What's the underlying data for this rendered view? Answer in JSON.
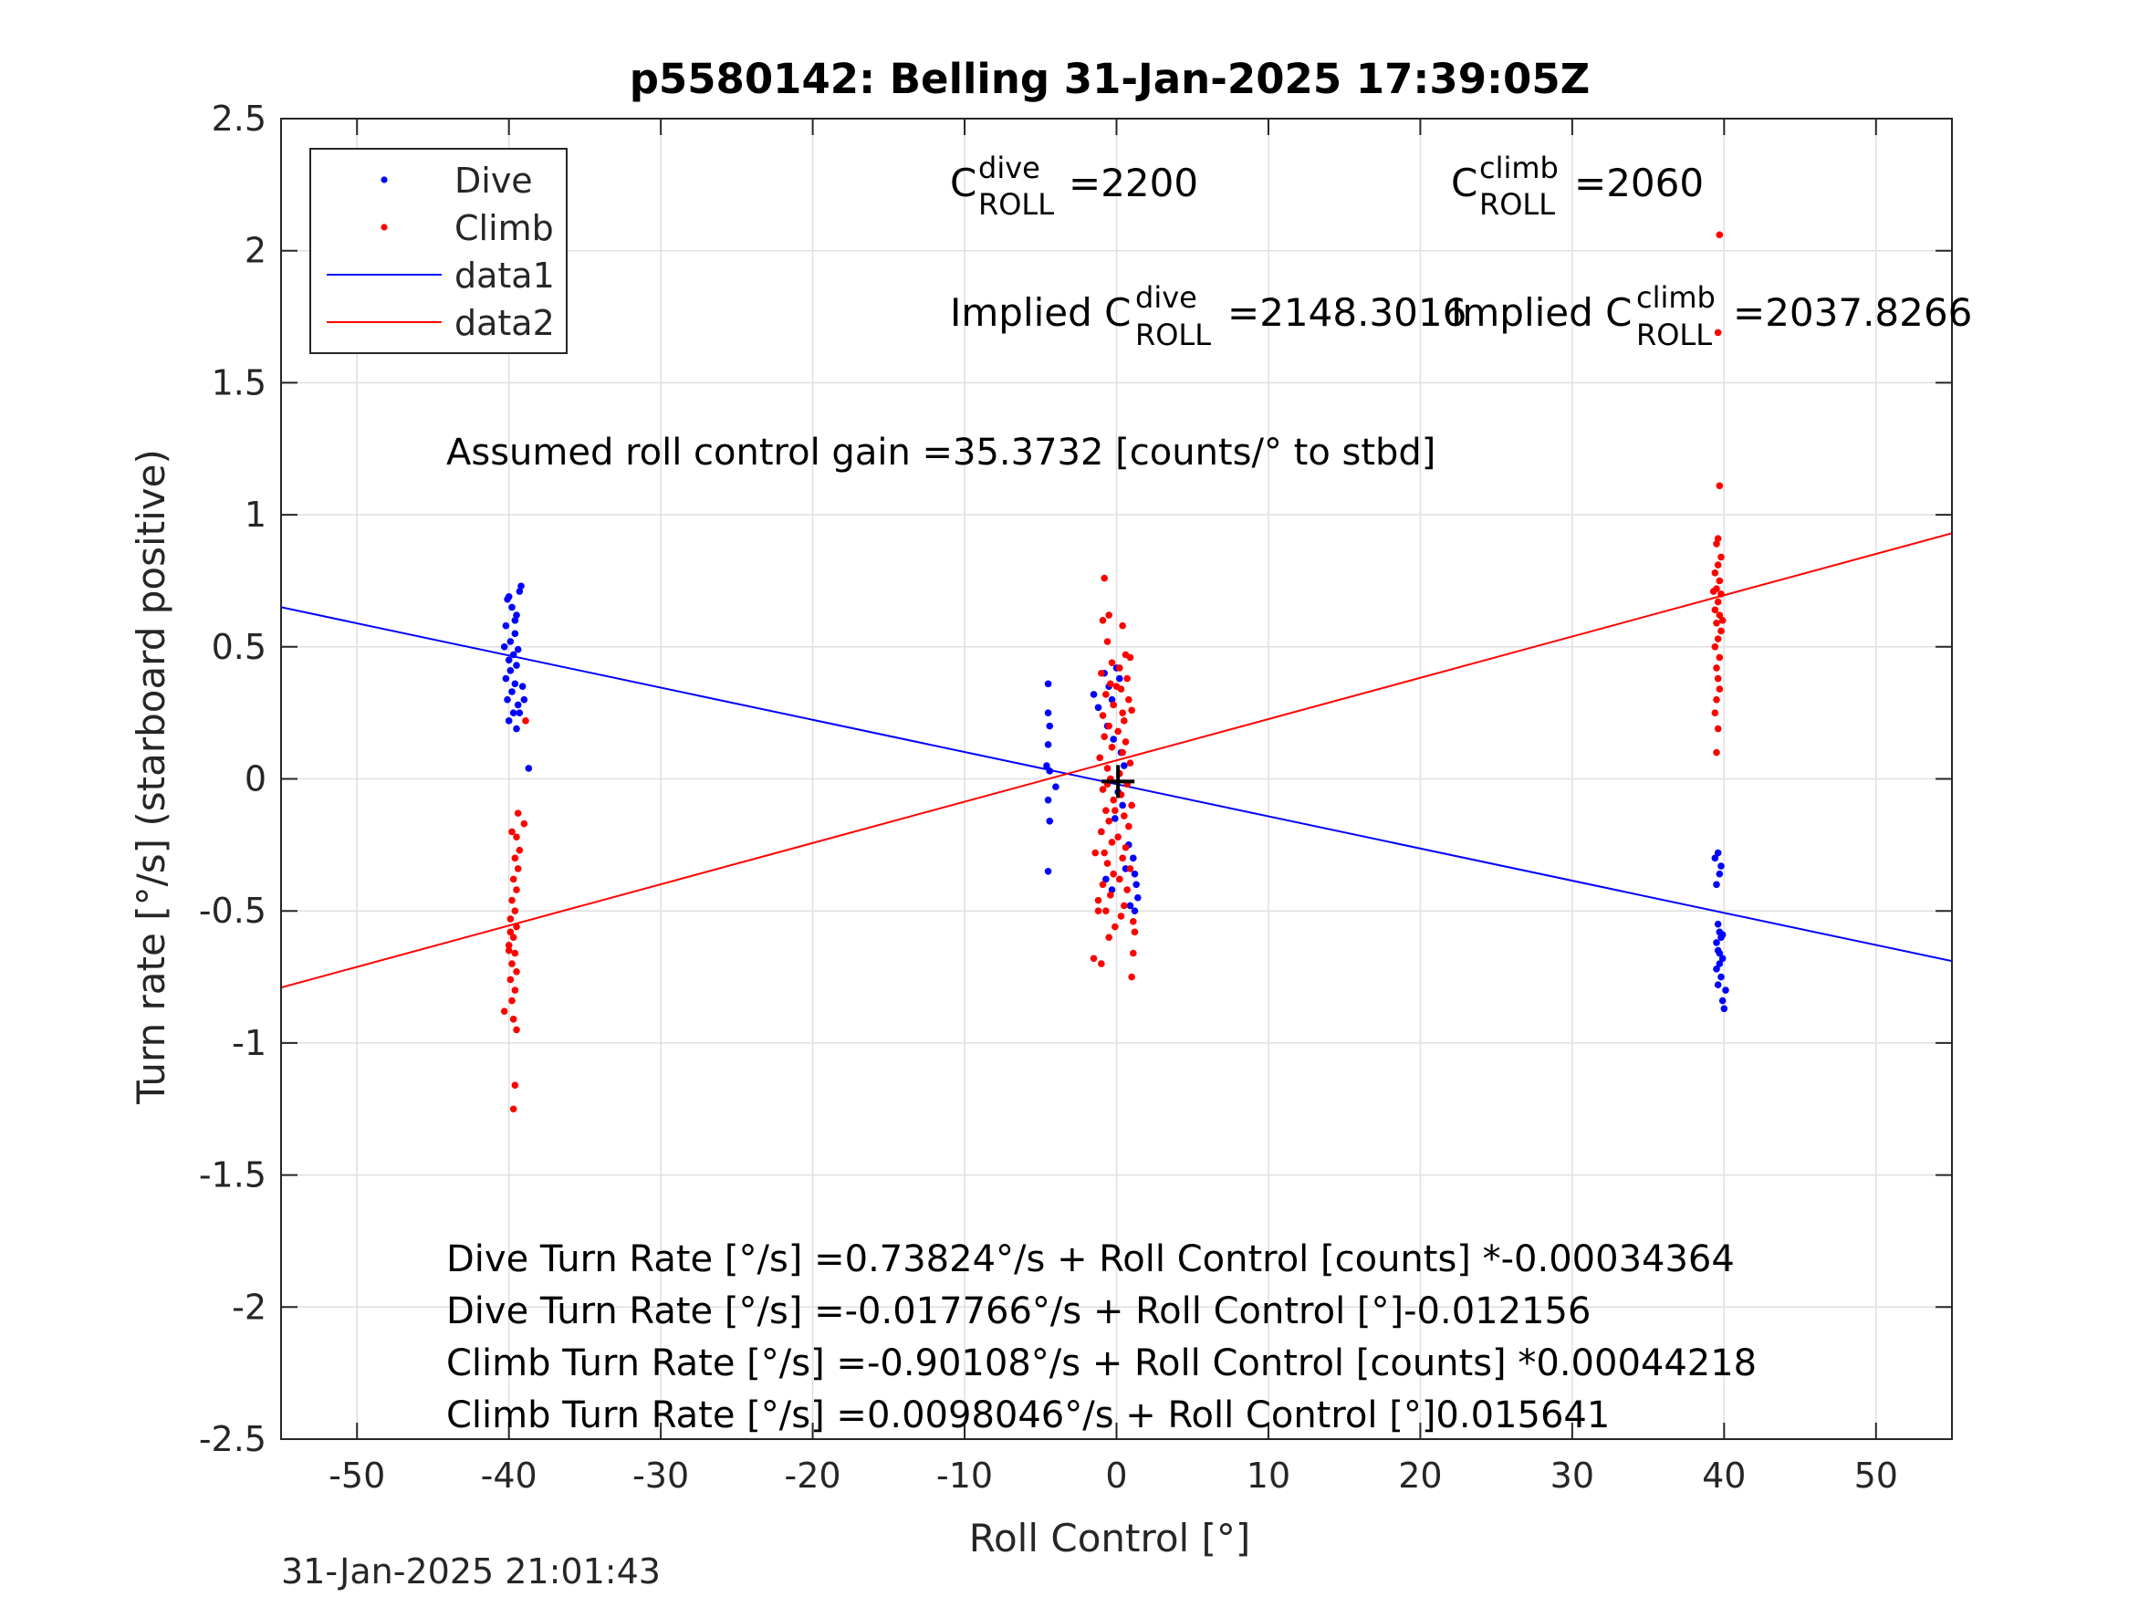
{
  "chart_data": {
    "type": "scatter",
    "title": "p5580142: Belling 31-Jan-2025 17:39:05Z",
    "xlabel": "Roll Control [°]",
    "ylabel": "Turn rate [°/s] (starboard positive)",
    "xlim": [
      -55,
      55
    ],
    "ylim": [
      -2.5,
      2.5
    ],
    "xticks": [
      -50,
      -40,
      -30,
      -20,
      -10,
      0,
      10,
      20,
      30,
      40,
      50
    ],
    "yticks": [
      -2.5,
      -2,
      -1.5,
      -1,
      -0.5,
      0,
      0.5,
      1,
      1.5,
      2,
      2.5
    ],
    "xtick_labels": [
      "-50",
      "-40",
      "-30",
      "-20",
      "-10",
      "0",
      "10",
      "20",
      "30",
      "40",
      "50"
    ],
    "ytick_labels": [
      "-2.5",
      "-2",
      "-1.5",
      "-1",
      "-0.5",
      "0",
      "0.5",
      "1",
      "1.5",
      "2",
      "2.5"
    ],
    "grid": true,
    "legend_position": "top-left",
    "legend": [
      "Dive",
      "Climb",
      "data1",
      "data2"
    ],
    "colors": {
      "dive": "#0000ff",
      "climb": "#ff0000",
      "marker": "#000000"
    },
    "series": [
      {
        "name": "Dive",
        "kind": "points",
        "points": [
          [
            -40.1,
            0.68
          ],
          [
            -39.8,
            0.65
          ],
          [
            -39.5,
            0.62
          ],
          [
            -40.2,
            0.58
          ],
          [
            -39.6,
            0.55
          ],
          [
            -39.9,
            0.52
          ],
          [
            -40.3,
            0.5
          ],
          [
            -39.4,
            0.49
          ],
          [
            -39.7,
            0.47
          ],
          [
            -40.0,
            0.45
          ],
          [
            -39.5,
            0.43
          ],
          [
            -39.9,
            0.41
          ],
          [
            -40.2,
            0.38
          ],
          [
            -39.6,
            0.36
          ],
          [
            -39.8,
            0.33
          ],
          [
            -40.1,
            0.3
          ],
          [
            -39.4,
            0.28
          ],
          [
            -39.7,
            0.25
          ],
          [
            -40.0,
            0.22
          ],
          [
            -39.5,
            0.19
          ],
          [
            -39.2,
            0.73
          ],
          [
            -39.3,
            0.71
          ],
          [
            -40.0,
            0.69
          ],
          [
            -39.6,
            0.6
          ],
          [
            -39.1,
            0.35
          ],
          [
            -39.0,
            0.3
          ],
          [
            -39.3,
            0.25
          ],
          [
            -38.7,
            0.04
          ],
          [
            -4.5,
            0.36
          ],
          [
            -4.5,
            0.25
          ],
          [
            -4.4,
            0.2
          ],
          [
            -4.5,
            0.13
          ],
          [
            -4.6,
            0.05
          ],
          [
            -4.4,
            0.03
          ],
          [
            -4.5,
            -0.08
          ],
          [
            -4.4,
            -0.16
          ],
          [
            -4.5,
            -0.35
          ],
          [
            -4.0,
            -0.03
          ],
          [
            -1.5,
            0.32
          ],
          [
            -1.2,
            0.27
          ],
          [
            -0.8,
            0.4
          ],
          [
            -0.5,
            0.35
          ],
          [
            -0.3,
            0.3
          ],
          [
            0.0,
            0.42
          ],
          [
            0.2,
            0.38
          ],
          [
            -0.6,
            0.2
          ],
          [
            -0.2,
            0.15
          ],
          [
            0.3,
            0.1
          ],
          [
            0.5,
            0.05
          ],
          [
            -0.4,
            0.0
          ],
          [
            0.1,
            -0.05
          ],
          [
            0.4,
            -0.1
          ],
          [
            -0.1,
            -0.15
          ],
          [
            -1.0,
            -0.2
          ],
          [
            0.8,
            -0.25
          ],
          [
            1.1,
            -0.3
          ],
          [
            1.2,
            -0.36
          ],
          [
            1.3,
            -0.4
          ],
          [
            1.4,
            -0.45
          ],
          [
            1.2,
            -0.5
          ],
          [
            -0.7,
            -0.38
          ],
          [
            0.6,
            -0.34
          ],
          [
            0.9,
            -0.48
          ],
          [
            -0.3,
            -0.42
          ],
          [
            39.6,
            -0.28
          ],
          [
            39.4,
            -0.3
          ],
          [
            39.8,
            -0.33
          ],
          [
            39.7,
            -0.36
          ],
          [
            39.5,
            -0.4
          ],
          [
            39.6,
            -0.55
          ],
          [
            39.7,
            -0.58
          ],
          [
            39.8,
            -0.6
          ],
          [
            39.5,
            -0.62
          ],
          [
            39.6,
            -0.65
          ],
          [
            39.9,
            -0.68
          ],
          [
            39.7,
            -0.7
          ],
          [
            39.5,
            -0.72
          ],
          [
            39.8,
            -0.75
          ],
          [
            39.6,
            -0.78
          ],
          [
            40.1,
            -0.8
          ],
          [
            39.9,
            -0.84
          ],
          [
            40.0,
            -0.87
          ],
          [
            39.7,
            -0.66
          ],
          [
            39.9,
            -0.59
          ]
        ]
      },
      {
        "name": "Climb",
        "kind": "points",
        "points": [
          [
            -39.4,
            -0.13
          ],
          [
            -39.0,
            -0.17
          ],
          [
            -39.8,
            -0.2
          ],
          [
            -39.5,
            -0.22
          ],
          [
            -39.3,
            -0.27
          ],
          [
            -39.6,
            -0.3
          ],
          [
            -39.4,
            -0.34
          ],
          [
            -39.7,
            -0.38
          ],
          [
            -39.5,
            -0.42
          ],
          [
            -39.8,
            -0.46
          ],
          [
            -39.6,
            -0.5
          ],
          [
            -39.9,
            -0.53
          ],
          [
            -39.5,
            -0.56
          ],
          [
            -39.7,
            -0.6
          ],
          [
            -40.0,
            -0.63
          ],
          [
            -39.6,
            -0.66
          ],
          [
            -39.8,
            -0.7
          ],
          [
            -39.5,
            -0.73
          ],
          [
            -39.9,
            -0.76
          ],
          [
            -39.6,
            -0.8
          ],
          [
            -39.8,
            -0.84
          ],
          [
            -40.3,
            -0.88
          ],
          [
            -39.7,
            -0.91
          ],
          [
            -39.5,
            -0.95
          ],
          [
            -39.6,
            -1.16
          ],
          [
            -39.7,
            -1.25
          ],
          [
            -38.9,
            0.22
          ],
          [
            -40.0,
            -0.65
          ],
          [
            -39.9,
            -0.58
          ],
          [
            -0.8,
            0.76
          ],
          [
            -0.5,
            0.62
          ],
          [
            -0.9,
            0.6
          ],
          [
            0.4,
            0.58
          ],
          [
            -0.6,
            0.52
          ],
          [
            0.6,
            0.47
          ],
          [
            0.9,
            0.46
          ],
          [
            -0.3,
            0.44
          ],
          [
            0.2,
            0.42
          ],
          [
            -1.0,
            0.4
          ],
          [
            0.7,
            0.38
          ],
          [
            -0.4,
            0.36
          ],
          [
            0.3,
            0.34
          ],
          [
            -0.7,
            0.32
          ],
          [
            0.8,
            0.3
          ],
          [
            -0.2,
            0.28
          ],
          [
            1.0,
            0.26
          ],
          [
            -0.9,
            0.24
          ],
          [
            0.5,
            0.22
          ],
          [
            -0.5,
            0.2
          ],
          [
            0.1,
            0.18
          ],
          [
            -0.8,
            0.16
          ],
          [
            0.6,
            0.14
          ],
          [
            -0.3,
            0.12
          ],
          [
            0.4,
            0.1
          ],
          [
            -1.1,
            0.08
          ],
          [
            0.9,
            0.06
          ],
          [
            -0.6,
            0.04
          ],
          [
            0.2,
            0.02
          ],
          [
            -0.4,
            0.0
          ],
          [
            0.7,
            -0.02
          ],
          [
            -0.9,
            -0.04
          ],
          [
            0.3,
            -0.06
          ],
          [
            -0.2,
            -0.08
          ],
          [
            1.0,
            -0.1
          ],
          [
            -0.7,
            -0.12
          ],
          [
            0.5,
            -0.14
          ],
          [
            -0.5,
            -0.16
          ],
          [
            0.8,
            -0.18
          ],
          [
            -1.0,
            -0.2
          ],
          [
            0.1,
            -0.22
          ],
          [
            -0.3,
            -0.24
          ],
          [
            0.6,
            -0.26
          ],
          [
            -0.8,
            -0.28
          ],
          [
            0.4,
            -0.3
          ],
          [
            -0.6,
            -0.32
          ],
          [
            0.9,
            -0.34
          ],
          [
            -0.2,
            -0.36
          ],
          [
            0.2,
            -0.38
          ],
          [
            -0.9,
            -0.4
          ],
          [
            0.7,
            -0.42
          ],
          [
            -0.4,
            -0.44
          ],
          [
            -1.2,
            -0.46
          ],
          [
            0.5,
            -0.48
          ],
          [
            -0.7,
            -0.5
          ],
          [
            0.3,
            -0.52
          ],
          [
            1.1,
            -0.54
          ],
          [
            -0.1,
            -0.56
          ],
          [
            1.2,
            -0.58
          ],
          [
            -0.5,
            -0.6
          ],
          [
            1.1,
            -0.66
          ],
          [
            -1.5,
            -0.68
          ],
          [
            -1.0,
            -0.7
          ],
          [
            1.0,
            -0.75
          ],
          [
            -1.2,
            -0.5
          ],
          [
            -1.4,
            -0.28
          ],
          [
            0.0,
            0.35
          ],
          [
            -0.1,
            -0.12
          ],
          [
            0.4,
            0.25
          ],
          [
            -0.6,
            -0.02
          ],
          [
            39.7,
            2.06
          ],
          [
            39.6,
            1.69
          ],
          [
            39.7,
            1.11
          ],
          [
            39.6,
            0.91
          ],
          [
            39.5,
            0.89
          ],
          [
            39.8,
            0.84
          ],
          [
            39.6,
            0.81
          ],
          [
            39.4,
            0.78
          ],
          [
            39.7,
            0.75
          ],
          [
            39.5,
            0.72
          ],
          [
            39.8,
            0.7
          ],
          [
            39.6,
            0.67
          ],
          [
            39.4,
            0.64
          ],
          [
            39.7,
            0.62
          ],
          [
            39.5,
            0.59
          ],
          [
            39.8,
            0.56
          ],
          [
            39.6,
            0.53
          ],
          [
            39.4,
            0.5
          ],
          [
            39.7,
            0.46
          ],
          [
            39.5,
            0.42
          ],
          [
            39.6,
            0.38
          ],
          [
            39.7,
            0.34
          ],
          [
            39.5,
            0.3
          ],
          [
            39.4,
            0.25
          ],
          [
            39.6,
            0.19
          ],
          [
            39.5,
            0.1
          ],
          [
            39.9,
            0.6
          ],
          [
            39.3,
            0.71
          ]
        ]
      },
      {
        "name": "data1",
        "kind": "line",
        "x": [
          -55,
          55
        ],
        "y": [
          0.65,
          -0.69
        ]
      },
      {
        "name": "data2",
        "kind": "line",
        "x": [
          -55,
          55
        ],
        "y": [
          -0.79,
          0.93
        ]
      }
    ],
    "center_marker": {
      "symbol": "+",
      "x": 0.1,
      "y": -0.01
    },
    "annotations": {
      "c_dive": {
        "base": "C",
        "sup": "dive",
        "sub": "ROLL",
        "value": "=2200"
      },
      "c_climb": {
        "base": "C",
        "sup": "climb",
        "sub": "ROLL",
        "value": "=2060"
      },
      "implied_dive": {
        "base": "Implied C",
        "sup": "dive",
        "sub": "ROLL",
        "value": "=2148.3016"
      },
      "implied_climb": {
        "base": "Implied C",
        "sup": "climb",
        "sub": "ROLL",
        "value": "=2037.8266"
      },
      "gain": "Assumed roll control gain =35.3732 [counts/° to stbd]",
      "eq1": "Dive Turn Rate [°/s] =0.73824°/s + Roll Control [counts] *-0.00034364",
      "eq2": "Dive Turn Rate [°/s] =-0.017766°/s + Roll Control [°]-0.012156",
      "eq3": "Climb Turn Rate [°/s] =-0.90108°/s + Roll Control [counts] *0.00044218",
      "eq4": "Climb Turn Rate [°/s] =0.0098046°/s + Roll Control [°]0.015641"
    },
    "footer_timestamp": "31-Jan-2025 21:01:43"
  }
}
